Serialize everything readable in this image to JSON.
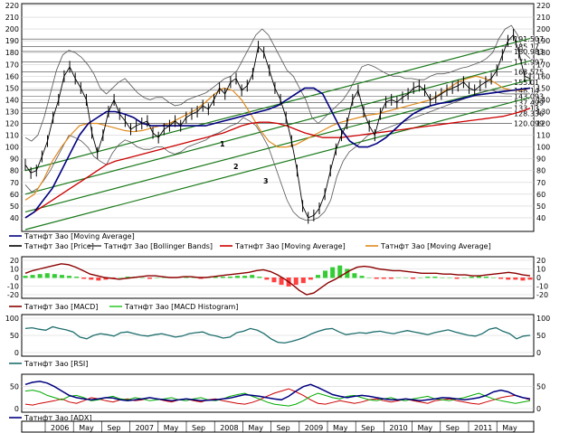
{
  "colors": {
    "price": "#000000",
    "ma_blue": "#000080",
    "ma_red": "#cc0000",
    "ma_orange": "#e08a1e",
    "bands": "#555555",
    "channel": "#1a7a1a",
    "macd": "#8b0000",
    "hist_pos": "#33cc33",
    "hist_neg": "#ff4040",
    "rsi": "#1f6e6e",
    "adx": "#000080",
    "di_plus": "#00aa00",
    "di_minus": "#cc0000"
  },
  "chart_data": [
    {
      "type": "line",
      "panel": "price",
      "ylim": [
        30,
        220
      ],
      "y_ticks": [
        40,
        50,
        60,
        70,
        80,
        90,
        100,
        110,
        120,
        130,
        140,
        150,
        160,
        170,
        180,
        190,
        200,
        210,
        220
      ],
      "price_levels": [
        "191.507",
        "185.17",
        "180.983",
        "171.997",
        "163.575",
        "155.01",
        "148.14",
        "143.093",
        "137.499",
        "133.13",
        "128.336",
        "120.099"
      ],
      "channel_labels": [
        "1",
        "2",
        "3"
      ],
      "series_price": [
        85,
        78,
        80,
        92,
        105,
        125,
        140,
        160,
        168,
        158,
        150,
        140,
        112,
        95,
        110,
        130,
        140,
        128,
        122,
        115,
        118,
        120,
        122,
        112,
        108,
        115,
        118,
        122,
        118,
        125,
        128,
        130,
        135,
        132,
        140,
        150,
        145,
        155,
        158,
        148,
        152,
        162,
        185,
        180,
        165,
        150,
        140,
        125,
        105,
        80,
        50,
        40,
        42,
        48,
        60,
        80,
        98,
        110,
        120,
        140,
        148,
        130,
        118,
        110,
        128,
        138,
        140,
        138,
        142,
        145,
        150,
        152,
        148,
        140,
        142,
        145,
        148,
        150,
        152,
        155,
        150,
        148,
        152,
        155,
        158,
        165,
        178,
        190,
        195,
        180,
        160,
        158
      ],
      "series_bb_upper": [
        108,
        105,
        110,
        125,
        145,
        165,
        178,
        182,
        180,
        176,
        170,
        162,
        150,
        145,
        150,
        155,
        158,
        152,
        146,
        142,
        140,
        142,
        142,
        138,
        135,
        136,
        140,
        142,
        144,
        146,
        150,
        154,
        158,
        160,
        165,
        175,
        185,
        195,
        200,
        195,
        185,
        175,
        165,
        160,
        150,
        140,
        125,
        120,
        125,
        130,
        135,
        140,
        148,
        158,
        168,
        170,
        168,
        165,
        162,
        160,
        160,
        158,
        158,
        157,
        157,
        160,
        162,
        162,
        163,
        165,
        167,
        168,
        170,
        172,
        175,
        180,
        192,
        200,
        203,
        195,
        180,
        175
      ],
      "series_bb_lower": [
        68,
        62,
        65,
        72,
        80,
        90,
        100,
        110,
        108,
        105,
        100,
        92,
        88,
        85,
        95,
        102,
        106,
        104,
        100,
        98,
        98,
        100,
        100,
        96,
        94,
        96,
        100,
        102,
        104,
        106,
        110,
        112,
        115,
        118,
        120,
        125,
        122,
        118,
        110,
        100,
        85,
        70,
        55,
        45,
        40,
        38,
        38,
        40,
        45,
        55,
        75,
        88,
        96,
        100,
        105,
        110,
        112,
        114,
        116,
        118,
        120,
        122,
        124,
        126,
        128,
        130,
        132,
        134,
        136,
        138,
        140,
        142,
        144,
        146,
        148,
        148,
        146,
        145,
        145,
        145,
        145,
        145
      ],
      "series_ma_blue": [
        40,
        45,
        55,
        65,
        80,
        95,
        110,
        120,
        125,
        130,
        130,
        128,
        125,
        120,
        118,
        118,
        118,
        118,
        118,
        118,
        118,
        120,
        122,
        124,
        126,
        128,
        130,
        132,
        135,
        140,
        145,
        150,
        150,
        145,
        130,
        115,
        105,
        100,
        100,
        103,
        108,
        115,
        122,
        128,
        132,
        135,
        137,
        138,
        140,
        142,
        144,
        145,
        146,
        147,
        148,
        149,
        150
      ],
      "series_ma_red": [
        40,
        45,
        50,
        55,
        60,
        65,
        70,
        75,
        80,
        85,
        88,
        90,
        92,
        94,
        96,
        98,
        100,
        102,
        104,
        106,
        108,
        110,
        112,
        115,
        118,
        120,
        121,
        121,
        120,
        118,
        115,
        112,
        110,
        108,
        108,
        108,
        109,
        110,
        111,
        112,
        113,
        114,
        115,
        116,
        117,
        118,
        119,
        120,
        121,
        122,
        123,
        124,
        125,
        126,
        128,
        130,
        133
      ],
      "series_ma_orange": [
        55,
        60,
        72,
        88,
        100,
        110,
        118,
        120,
        120,
        118,
        116,
        114,
        113,
        114,
        116,
        118,
        120,
        124,
        128,
        132,
        138,
        145,
        150,
        148,
        140,
        128,
        115,
        105,
        100,
        100,
        102,
        106,
        110,
        114,
        118,
        121,
        123,
        125,
        127,
        128,
        130,
        132,
        134,
        136,
        138,
        140,
        145,
        150,
        155,
        158,
        160,
        158,
        155,
        150,
        148,
        148,
        150
      ],
      "series_ch1": [
        60,
        173
      ],
      "series_ch2": [
        45,
        157
      ],
      "series_ch3": [
        30,
        142
      ],
      "series_ch4": [
        80,
        192
      ]
    },
    {
      "type": "line",
      "panel": "macd",
      "ylim": [
        -20,
        20
      ],
      "y_ticks": [
        20,
        10,
        0,
        -10,
        -20
      ],
      "series_macd": [
        5,
        8,
        10,
        12,
        14,
        16,
        15,
        12,
        8,
        4,
        2,
        0,
        -1,
        -2,
        -1,
        0,
        1,
        2,
        2,
        1,
        0,
        0,
        1,
        1,
        0,
        0,
        1,
        2,
        3,
        4,
        5,
        6,
        8,
        9,
        7,
        3,
        -2,
        -8,
        -15,
        -20,
        -18,
        -12,
        -6,
        -2,
        3,
        8,
        12,
        13,
        12,
        10,
        9,
        8,
        8,
        7,
        6,
        5,
        5,
        5,
        4,
        4,
        3,
        3,
        2,
        2,
        3,
        4,
        5,
        6,
        5,
        3,
        2
      ],
      "series_hist": [
        2,
        3,
        4,
        5,
        4,
        3,
        2,
        1,
        -1,
        -2,
        -3,
        -2,
        -1,
        0,
        1,
        1,
        0,
        -1,
        0,
        1,
        0,
        0,
        1,
        0,
        -1,
        0,
        1,
        1,
        1,
        2,
        2,
        3,
        1,
        -2,
        -5,
        -8,
        -10,
        -8,
        -6,
        -2,
        3,
        8,
        12,
        14,
        10,
        5,
        2,
        0,
        -1,
        -1,
        -1,
        0,
        0,
        -1,
        0,
        1,
        1,
        0,
        0,
        -1,
        0,
        1,
        2,
        1,
        0,
        -1,
        -2,
        -2,
        -3,
        -2
      ]
    },
    {
      "type": "line",
      "panel": "rsi",
      "ylim": [
        0,
        100
      ],
      "y_ticks": [
        100,
        50,
        0
      ],
      "series_rsi": [
        70,
        72,
        68,
        65,
        75,
        70,
        66,
        60,
        45,
        40,
        50,
        55,
        52,
        48,
        58,
        60,
        55,
        50,
        48,
        52,
        55,
        50,
        45,
        48,
        55,
        58,
        60,
        52,
        48,
        42,
        45,
        58,
        62,
        70,
        65,
        55,
        40,
        30,
        28,
        32,
        38,
        45,
        55,
        62,
        68,
        70,
        60,
        52,
        55,
        58,
        56,
        60,
        62,
        58,
        55,
        60,
        64,
        60,
        56,
        52,
        58,
        62,
        66,
        60,
        55,
        50,
        48,
        55,
        68,
        72,
        62,
        55,
        40,
        48,
        50
      ]
    },
    {
      "type": "line",
      "panel": "adx",
      "ylim": [
        0,
        70
      ],
      "y_ticks": [
        50,
        0
      ],
      "series_adx": [
        55,
        60,
        62,
        58,
        50,
        40,
        30,
        25,
        22,
        20,
        22,
        25,
        24,
        20,
        18,
        20,
        22,
        25,
        22,
        20,
        18,
        20,
        22,
        20,
        18,
        19,
        20,
        22,
        24,
        28,
        32,
        30,
        28,
        25,
        22,
        20,
        28,
        40,
        50,
        55,
        48,
        40,
        32,
        28,
        25,
        28,
        30,
        28,
        25,
        22,
        20,
        20,
        22,
        20,
        18,
        20,
        22,
        25,
        24,
        22,
        20,
        22,
        25,
        30,
        38,
        42,
        38,
        30,
        25,
        22
      ],
      "series_di_plus": [
        40,
        42,
        38,
        30,
        25,
        20,
        28,
        30,
        25,
        18,
        20,
        25,
        28,
        22,
        20,
        25,
        22,
        18,
        20,
        22,
        25,
        20,
        18,
        22,
        25,
        20,
        18,
        22,
        28,
        32,
        35,
        28,
        22,
        15,
        10,
        8,
        6,
        10,
        18,
        28,
        35,
        30,
        25,
        22,
        28,
        30,
        25,
        20,
        18,
        22,
        25,
        20,
        18,
        22,
        25,
        28,
        22,
        20,
        18,
        22,
        25,
        30,
        35,
        28,
        22,
        18,
        15,
        12,
        15,
        18
      ],
      "series_di_minus": [
        10,
        8,
        12,
        15,
        18,
        22,
        15,
        12,
        18,
        25,
        22,
        18,
        15,
        20,
        22,
        18,
        20,
        25,
        22,
        18,
        15,
        20,
        22,
        18,
        15,
        20,
        22,
        18,
        15,
        12,
        10,
        14,
        20,
        28,
        35,
        40,
        45,
        38,
        30,
        20,
        12,
        10,
        14,
        18,
        15,
        12,
        15,
        20,
        22,
        18,
        15,
        18,
        22,
        18,
        15,
        12,
        18,
        20,
        22,
        18,
        15,
        12,
        10,
        15,
        20,
        25,
        28,
        30,
        25,
        20
      ]
    }
  ],
  "legend": {
    "price": [
      {
        "label": "Татнфт 3ао [Moving Average]",
        "key": "ma_blue"
      },
      {
        "label": "Татнфт 3ао [Price]",
        "key": "price"
      },
      {
        "label": "Татнфт 3ао [Bollinger Bands]",
        "key": "bands"
      },
      {
        "label": "Татнфт 3ао [Moving Average]",
        "key": "ma_red"
      },
      {
        "label": "Татнфт 3ао [Moving Average]",
        "key": "ma_orange"
      }
    ],
    "macd": [
      {
        "label": "Татнфт 3ао [MACD]",
        "key": "macd"
      },
      {
        "label": "Татнфт 3ао [MACD Histogram]",
        "key": "hist_pos"
      }
    ],
    "rsi": [
      {
        "label": "Татнфт 3ао [RSI]",
        "key": "rsi"
      }
    ],
    "adx": [
      {
        "label": "Татнфт 3ао [ADX]",
        "key": "adx"
      }
    ]
  },
  "x_axis": [
    "2006",
    "May",
    "Sep",
    "2007",
    "May",
    "Sep",
    "2008",
    "May",
    "Sep",
    "2009",
    "May",
    "Sep",
    "2010",
    "May",
    "Sep",
    "2011",
    "May"
  ]
}
